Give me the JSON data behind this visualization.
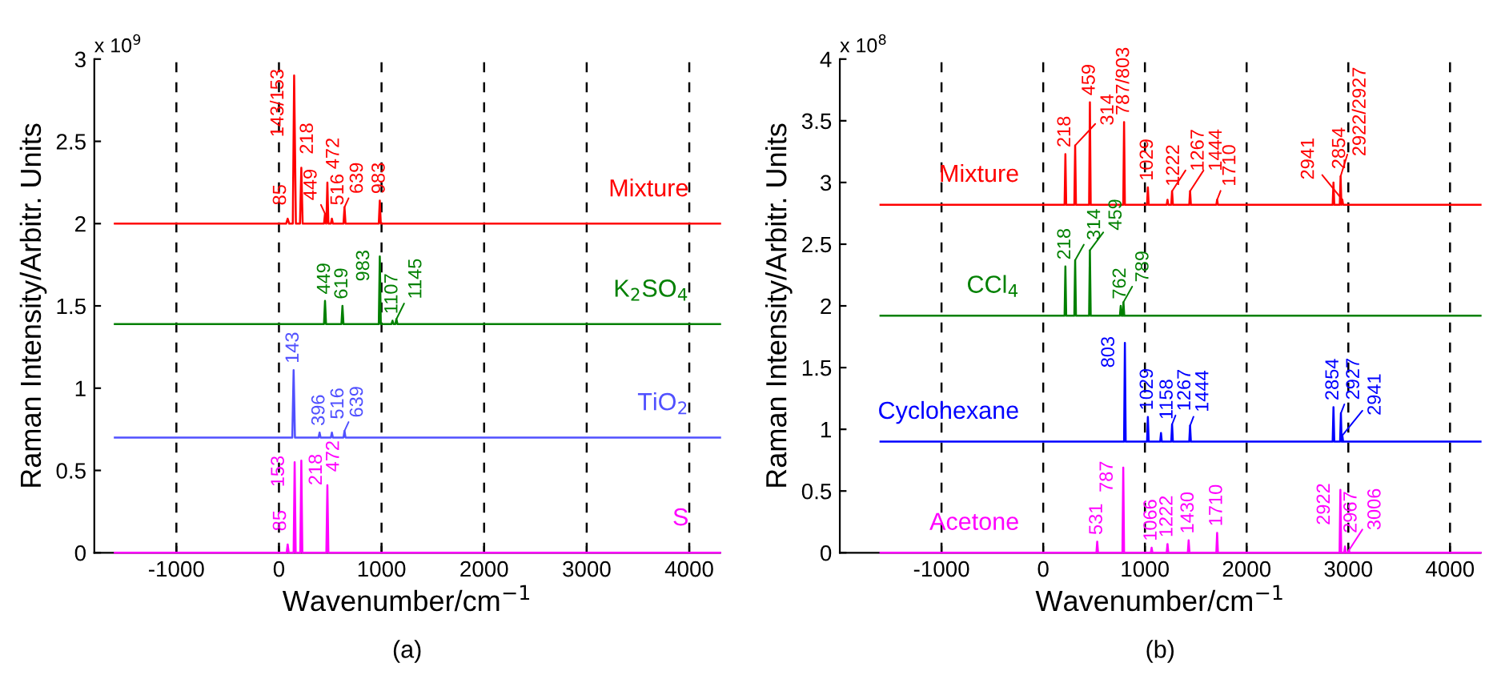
{
  "chart_data": [
    {
      "type": "line",
      "title": "(a)",
      "xlabel": "Wavenumber/cm$^{−1}$",
      "ylabel": "Raman Intensity/Arbitr. Units",
      "xlim": [
        -1800,
        4300
      ],
      "xticks": [
        -1000,
        0,
        1000,
        2000,
        3000,
        4000
      ],
      "ylim": [
        0,
        3
      ],
      "yticks": [
        0,
        0.5,
        1,
        1.5,
        2,
        2.5,
        3
      ],
      "grid": "x",
      "legend": false,
      "marker": "none",
      "line_style": "solid",
      "series": [
        {
          "name": "Mixture",
          "color": "#ff0000",
          "x": [
            -1600,
            70,
            85,
            100,
            135,
            148,
            165,
            205,
            218,
            231,
            439,
            449,
            459,
            462,
            472,
            482,
            506,
            516,
            526,
            629,
            639,
            649,
            973,
            983,
            993,
            4300
          ],
          "values": [
            2.0,
            2.0,
            2.03,
            2.0,
            2.0,
            2.9,
            2.0,
            2.0,
            2.34,
            2.0,
            2.0,
            2.06,
            2.0,
            2.0,
            2.25,
            2.0,
            2.0,
            2.03,
            2.0,
            2.0,
            2.1,
            2.0,
            2.0,
            2.14,
            2.0,
            2.0
          ]
        },
        {
          "name": "K$_{2}$SO$_{4}$",
          "color": "#008000",
          "x": [
            -1600,
            439,
            449,
            459,
            609,
            619,
            629,
            973,
            983,
            993,
            1097,
            1107,
            1117,
            1135,
            1145,
            1155,
            4300
          ],
          "values": [
            1.39,
            1.39,
            1.53,
            1.39,
            1.39,
            1.5,
            1.39,
            1.39,
            1.8,
            1.39,
            1.39,
            1.41,
            1.39,
            1.39,
            1.42,
            1.39,
            1.39
          ]
        },
        {
          "name": "TiO$_{2}$",
          "color": "#5050ff",
          "x": [
            -1600,
            130,
            143,
            156,
            386,
            396,
            406,
            506,
            516,
            526,
            629,
            639,
            649,
            4300
          ],
          "values": [
            0.7,
            0.7,
            1.11,
            0.7,
            0.7,
            0.73,
            0.7,
            0.7,
            0.73,
            0.7,
            0.7,
            0.74,
            0.7,
            0.7
          ]
        },
        {
          "name": "S",
          "color": "#ff00ff",
          "x": [
            -1600,
            75,
            85,
            95,
            143,
            153,
            163,
            208,
            218,
            228,
            462,
            472,
            482,
            4300
          ],
          "values": [
            0,
            0,
            0.05,
            0,
            0,
            0.55,
            0,
            0,
            0.56,
            0,
            0,
            0.41,
            0,
            0
          ]
        }
      ],
      "annotations": [
        "x 10$^{9}$",
        {
          "text": "85",
          "x": 85,
          "y": 2.03
        },
        {
          "text": "143/153",
          "x": 148,
          "y": 2.9
        },
        {
          "text": "218",
          "x": 218,
          "y": 2.34
        },
        {
          "text": "449",
          "x": 449,
          "y": 2.06
        },
        {
          "text": "472",
          "x": 472,
          "y": 2.25
        },
        {
          "text": "516",
          "x": 516,
          "y": 2.03
        },
        {
          "text": "639",
          "x": 639,
          "y": 2.1
        },
        {
          "text": "983",
          "x": 983,
          "y": 2.14
        },
        {
          "text": "449",
          "x": 449,
          "y": 1.53
        },
        {
          "text": "619",
          "x": 619,
          "y": 1.5
        },
        {
          "text": "983",
          "x": 983,
          "y": 1.8
        },
        {
          "text": "1107",
          "x": 1107,
          "y": 1.41
        },
        {
          "text": "1145",
          "x": 1145,
          "y": 1.42
        },
        {
          "text": "143",
          "x": 143,
          "y": 1.11
        },
        {
          "text": "396",
          "x": 396,
          "y": 0.73
        },
        {
          "text": "516",
          "x": 516,
          "y": 0.73
        },
        {
          "text": "639",
          "x": 639,
          "y": 0.74
        },
        {
          "text": "85",
          "x": 85,
          "y": 0.05
        },
        {
          "text": "153",
          "x": 153,
          "y": 0.55
        },
        {
          "text": "218",
          "x": 218,
          "y": 0.56
        },
        {
          "text": "472",
          "x": 472,
          "y": 0.41
        }
      ]
    },
    {
      "type": "line",
      "title": "(b)",
      "xlabel": "Wavenumber/cm$^{−1}$",
      "ylabel": "Raman Intensity/Arbitr. Units",
      "xlim": [
        -2000,
        4300
      ],
      "xticks": [
        -1000,
        0,
        1000,
        2000,
        3000,
        4000
      ],
      "ylim": [
        0,
        4
      ],
      "yticks": [
        0,
        0.5,
        1,
        1.5,
        2,
        2.5,
        3,
        3.5,
        4
      ],
      "grid": "x",
      "legend": false,
      "marker": "none",
      "line_style": "solid",
      "series": [
        {
          "name": "Mixture",
          "color": "#ff0000",
          "x": [
            -1600,
            210,
            218,
            226,
            306,
            314,
            322,
            451,
            459,
            467,
            787,
            795,
            803,
            1021,
            1029,
            1037,
            1214,
            1222,
            1230,
            1259,
            1267,
            1275,
            1436,
            1444,
            1452,
            1702,
            1710,
            1718,
            2846,
            2854,
            2862,
            2916,
            2924,
            2932,
            2935,
            2941,
            2949,
            4300
          ],
          "values": [
            2.82,
            2.82,
            3.23,
            2.82,
            2.82,
            3.3,
            2.82,
            2.82,
            3.65,
            2.82,
            2.82,
            3.49,
            2.82,
            2.82,
            2.96,
            2.82,
            2.82,
            2.86,
            2.82,
            2.82,
            2.93,
            2.82,
            2.82,
            2.93,
            2.82,
            2.82,
            2.86,
            2.82,
            2.82,
            3.0,
            2.82,
            2.82,
            3.05,
            2.82,
            2.82,
            2.86,
            2.82,
            2.82
          ]
        },
        {
          "name": "CCl$_{4}$",
          "color": "#008000",
          "x": [
            -1600,
            210,
            218,
            226,
            306,
            314,
            322,
            451,
            459,
            467,
            754,
            762,
            770,
            781,
            789,
            797,
            4300
          ],
          "values": [
            1.92,
            1.92,
            2.32,
            1.92,
            1.92,
            2.37,
            1.92,
            1.92,
            2.45,
            1.92,
            1.92,
            2.0,
            1.92,
            1.92,
            2.03,
            1.92,
            1.92
          ]
        },
        {
          "name": "Cyclohexane",
          "color": "#0000ff",
          "x": [
            -1600,
            795,
            803,
            811,
            1021,
            1029,
            1037,
            1150,
            1158,
            1166,
            1259,
            1267,
            1275,
            1436,
            1444,
            1452,
            2846,
            2854,
            2862,
            2919,
            2927,
            2934,
            2936,
            2941,
            2949,
            4300
          ],
          "values": [
            0.9,
            0.9,
            1.7,
            0.9,
            0.9,
            1.1,
            0.9,
            0.9,
            0.97,
            0.9,
            0.9,
            1.04,
            0.9,
            0.9,
            1.03,
            0.9,
            0.9,
            1.18,
            0.9,
            0.9,
            1.13,
            0.9,
            0.9,
            0.95,
            0.9,
            0.9
          ]
        },
        {
          "name": "Acetone",
          "color": "#ff00ff",
          "x": [
            -1600,
            523,
            531,
            539,
            779,
            787,
            795,
            1058,
            1066,
            1074,
            1214,
            1222,
            1230,
            1422,
            1430,
            1438,
            1702,
            1710,
            1718,
            2914,
            2922,
            2930,
            2959,
            2967,
            2975,
            2998,
            3006,
            3014,
            4300
          ],
          "values": [
            0,
            0,
            0.09,
            0,
            0,
            0.69,
            0,
            0,
            0.04,
            0,
            0,
            0.07,
            0,
            0,
            0.1,
            0,
            0,
            0.16,
            0,
            0,
            0.51,
            0,
            0,
            0.05,
            0,
            0,
            0.02,
            0,
            0
          ]
        }
      ],
      "annotations": [
        "x 10$^{8}$",
        {
          "text": "218",
          "x": 218,
          "y": 3.23
        },
        {
          "text": "314",
          "x": 314,
          "y": 3.3
        },
        {
          "text": "459",
          "x": 459,
          "y": 3.65
        },
        {
          "text": "787/803",
          "x": 795,
          "y": 3.49
        },
        {
          "text": "1029",
          "x": 1029,
          "y": 2.96
        },
        {
          "text": "1222",
          "x": 1222,
          "y": 2.86
        },
        {
          "text": "1267",
          "x": 1267,
          "y": 2.93
        },
        {
          "text": "1444",
          "x": 1444,
          "y": 2.93
        },
        {
          "text": "1710",
          "x": 1710,
          "y": 2.86
        },
        {
          "text": "2854",
          "x": 2854,
          "y": 3.0
        },
        {
          "text": "2922/2927",
          "x": 2924,
          "y": 3.05
        },
        {
          "text": "2941",
          "x": 2941,
          "y": 2.86
        },
        {
          "text": "218",
          "x": 218,
          "y": 2.32
        },
        {
          "text": "314",
          "x": 314,
          "y": 2.37
        },
        {
          "text": "459",
          "x": 459,
          "y": 2.45
        },
        {
          "text": "762",
          "x": 762,
          "y": 2.0
        },
        {
          "text": "789",
          "x": 789,
          "y": 2.03
        },
        {
          "text": "803",
          "x": 803,
          "y": 1.7
        },
        {
          "text": "1029",
          "x": 1029,
          "y": 1.1
        },
        {
          "text": "1158",
          "x": 1158,
          "y": 0.97
        },
        {
          "text": "1267",
          "x": 1267,
          "y": 1.04
        },
        {
          "text": "1444",
          "x": 1444,
          "y": 1.03
        },
        {
          "text": "2854",
          "x": 2854,
          "y": 1.18
        },
        {
          "text": "2927",
          "x": 2927,
          "y": 1.13
        },
        {
          "text": "2941",
          "x": 2941,
          "y": 0.95
        },
        {
          "text": "531",
          "x": 531,
          "y": 0.09
        },
        {
          "text": "787",
          "x": 787,
          "y": 0.69
        },
        {
          "text": "1066",
          "x": 1066,
          "y": 0.04
        },
        {
          "text": "1222",
          "x": 1222,
          "y": 0.07
        },
        {
          "text": "1430",
          "x": 1430,
          "y": 0.1
        },
        {
          "text": "1710",
          "x": 1710,
          "y": 0.16
        },
        {
          "text": "2922",
          "x": 2922,
          "y": 0.51
        },
        {
          "text": "2967",
          "x": 2967,
          "y": 0.05
        },
        {
          "text": "3006",
          "x": 3006,
          "y": 0.02
        }
      ]
    }
  ]
}
